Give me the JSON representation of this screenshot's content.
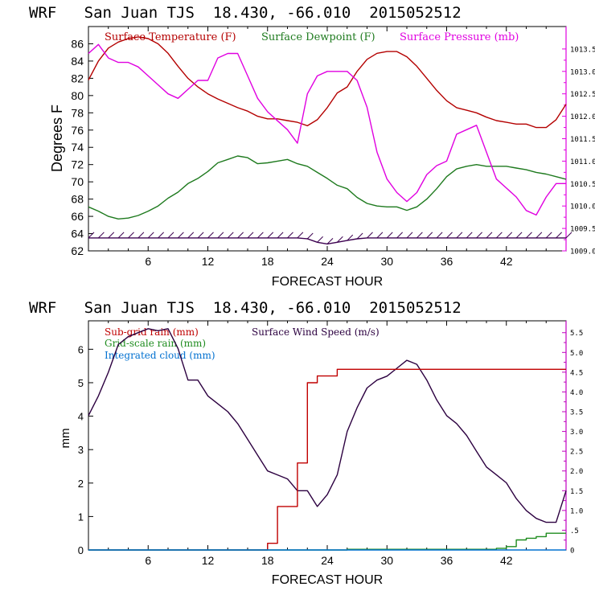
{
  "chart_data": [
    {
      "type": "line",
      "title": "WRF   San Juan TJS  18.430, -66.010  2015052512",
      "xlabel": "FORECAST HOUR",
      "ylabel": "Degrees F",
      "xlim": [
        0,
        48
      ],
      "ylim": [
        62,
        88
      ],
      "y2lim": [
        1009.0,
        1014.0
      ],
      "xticks": [
        "6",
        "12",
        "18",
        "24",
        "30",
        "36",
        "42"
      ],
      "yticks": [
        "62",
        "64",
        "66",
        "68",
        "70",
        "72",
        "74",
        "76",
        "78",
        "80",
        "82",
        "84",
        "86"
      ],
      "y2ticks": [
        "1009.0",
        "1009.5",
        "1010.0",
        "1010.5",
        "1011.0",
        "1011.5",
        "1012.0",
        "1012.5",
        "1013.0",
        "1013.5"
      ],
      "colors": {
        "temperature": "#b40000",
        "dewpoint": "#1e7a1e",
        "pressure": "#e000e0",
        "wind": "#3c0050"
      },
      "legend": [
        "Surface Temperature (F)",
        "Surface Dewpoint (F)",
        "Surface Pressure (mb)"
      ],
      "x": [
        0,
        1,
        2,
        3,
        4,
        5,
        6,
        7,
        8,
        9,
        10,
        11,
        12,
        13,
        14,
        15,
        16,
        17,
        18,
        19,
        20,
        21,
        22,
        23,
        24,
        25,
        26,
        27,
        28,
        29,
        30,
        31,
        32,
        33,
        34,
        35,
        36,
        37,
        38,
        39,
        40,
        41,
        42,
        43,
        44,
        45,
        46,
        47,
        48
      ],
      "series": [
        {
          "name": "Surface Temperature (F)",
          "axis": "left",
          "values": [
            81.8,
            84.0,
            85.5,
            86.2,
            86.6,
            86.8,
            86.6,
            86.0,
            84.9,
            83.4,
            82.0,
            81.0,
            80.2,
            79.6,
            79.1,
            78.6,
            78.2,
            77.6,
            77.3,
            77.3,
            77.1,
            76.9,
            76.5,
            77.2,
            78.6,
            80.3,
            81.0,
            82.8,
            84.2,
            84.9,
            85.1,
            85.1,
            84.5,
            83.4,
            82.0,
            80.6,
            79.4,
            78.6,
            78.3,
            78.0,
            77.5,
            77.1,
            76.9,
            76.7,
            76.7,
            76.3,
            76.3,
            77.2,
            79.0
          ]
        },
        {
          "name": "Surface Dewpoint (F)",
          "axis": "left",
          "values": [
            67.1,
            66.6,
            66.0,
            65.7,
            65.8,
            66.1,
            66.6,
            67.2,
            68.1,
            68.8,
            69.8,
            70.4,
            71.2,
            72.2,
            72.6,
            73.0,
            72.8,
            72.1,
            72.2,
            72.4,
            72.6,
            72.1,
            71.8,
            71.1,
            70.4,
            69.6,
            69.2,
            68.2,
            67.5,
            67.2,
            67.1,
            67.1,
            66.7,
            67.1,
            68.0,
            69.2,
            70.6,
            71.5,
            71.8,
            72.0,
            71.8,
            71.8,
            71.8,
            71.6,
            71.4,
            71.1,
            70.9,
            70.6,
            70.3
          ]
        },
        {
          "name": "Surface Pressure (mb)",
          "axis": "right",
          "values": [
            1013.4,
            1013.6,
            1013.3,
            1013.2,
            1013.2,
            1013.1,
            1012.9,
            1012.7,
            1012.5,
            1012.4,
            1012.6,
            1012.8,
            1012.8,
            1013.3,
            1013.4,
            1013.4,
            1012.9,
            1012.4,
            1012.1,
            1011.9,
            1011.7,
            1011.4,
            1012.5,
            1012.9,
            1013.0,
            1013.0,
            1013.0,
            1012.8,
            1012.2,
            1011.2,
            1010.6,
            1010.3,
            1010.1,
            1010.3,
            1010.7,
            1010.9,
            1011.0,
            1011.6,
            1011.7,
            1011.8,
            1011.2,
            1010.6,
            1010.4,
            1010.2,
            1009.9,
            1009.8,
            1010.2,
            1010.5,
            1010.5
          ]
        },
        {
          "name": "",
          "axis": "left",
          "style": "wind-barbs",
          "values": [
            63.5,
            63.5,
            63.5,
            63.5,
            63.5,
            63.5,
            63.5,
            63.5,
            63.5,
            63.5,
            63.5,
            63.5,
            63.5,
            63.5,
            63.5,
            63.5,
            63.5,
            63.5,
            63.5,
            63.5,
            63.5,
            63.5,
            63.4,
            63.0,
            62.8,
            63.0,
            63.2,
            63.4,
            63.5,
            63.5,
            63.5,
            63.5,
            63.5,
            63.5,
            63.5,
            63.5,
            63.5,
            63.5,
            63.5,
            63.5,
            63.5,
            63.5,
            63.5,
            63.5,
            63.5,
            63.5,
            63.5,
            63.5,
            63.5
          ]
        }
      ]
    },
    {
      "type": "line",
      "title": "WRF   San Juan TJS  18.430, -66.010  2015052512",
      "xlabel": "FORECAST HOUR",
      "ylabel": "mm",
      "xlim": [
        0,
        48
      ],
      "ylim": [
        0,
        6.85
      ],
      "y2lim": [
        0,
        5.8
      ],
      "xticks": [
        "6",
        "12",
        "18",
        "24",
        "30",
        "36",
        "42"
      ],
      "yticks": [
        "0",
        "1",
        "2",
        "3",
        "4",
        "5",
        "6"
      ],
      "y2ticks": [
        "0",
        ".5",
        "1.0",
        "1.5",
        "2.0",
        "2.5",
        "3.0",
        "3.5",
        "4.0",
        "4.5",
        "5.0",
        "5.5"
      ],
      "colors": {
        "subgrid": "#c00000",
        "gridscale": "#1e8c1e",
        "cloud": "#0070d0",
        "wind": "#2c0040"
      },
      "legend": [
        "Sub-grid rain (mm)",
        "Grid-scale rain (mm)",
        "Integrated cloud (mm)",
        "Surface Wind Speed (m/s)"
      ],
      "x": [
        0,
        1,
        2,
        3,
        4,
        5,
        6,
        7,
        8,
        9,
        10,
        11,
        12,
        13,
        14,
        15,
        16,
        17,
        18,
        19,
        20,
        21,
        22,
        23,
        24,
        25,
        26,
        27,
        28,
        29,
        30,
        31,
        32,
        33,
        34,
        35,
        36,
        37,
        38,
        39,
        40,
        41,
        42,
        43,
        44,
        45,
        46,
        47,
        48
      ],
      "series": [
        {
          "name": "Surface Wind Speed (m/s)",
          "axis": "right",
          "values": [
            3.4,
            3.9,
            4.5,
            5.2,
            5.4,
            5.5,
            5.6,
            5.55,
            5.6,
            5.1,
            4.3,
            4.3,
            3.9,
            3.7,
            3.5,
            3.2,
            2.8,
            2.4,
            2.0,
            1.9,
            1.8,
            1.5,
            1.5,
            1.1,
            1.4,
            1.9,
            3.0,
            3.6,
            4.1,
            4.3,
            4.4,
            4.6,
            4.8,
            4.7,
            4.3,
            3.8,
            3.4,
            3.2,
            2.9,
            2.5,
            2.1,
            1.9,
            1.7,
            1.3,
            1.0,
            0.8,
            0.7,
            0.7,
            1.5
          ]
        },
        {
          "name": "Sub-grid rain (mm)",
          "axis": "left",
          "values": [
            0,
            0,
            0,
            0,
            0,
            0,
            0,
            0,
            0,
            0,
            0,
            0,
            0,
            0,
            0,
            0,
            0,
            0,
            0.2,
            1.3,
            1.3,
            2.6,
            5.0,
            5.2,
            5.2,
            5.4,
            5.4,
            5.4,
            5.4,
            5.4,
            5.4,
            5.4,
            5.4,
            5.4,
            5.4,
            5.4,
            5.4,
            5.4,
            5.4,
            5.4,
            5.4,
            5.4,
            5.4,
            5.4,
            5.4,
            5.4,
            5.4,
            5.4,
            5.4
          ]
        },
        {
          "name": "Grid-scale rain (mm)",
          "axis": "left",
          "values": [
            0,
            0,
            0,
            0,
            0,
            0,
            0,
            0,
            0,
            0,
            0,
            0,
            0,
            0,
            0,
            0,
            0,
            0,
            0,
            0,
            0,
            0,
            0,
            0,
            0,
            0,
            0.02,
            0.02,
            0.02,
            0.02,
            0.02,
            0.02,
            0.02,
            0.02,
            0.02,
            0.02,
            0.02,
            0.02,
            0.02,
            0.02,
            0.02,
            0.05,
            0.1,
            0.3,
            0.35,
            0.4,
            0.5,
            0.5,
            0.5
          ]
        },
        {
          "name": "Integrated cloud (mm)",
          "axis": "left",
          "values": [
            0,
            0,
            0,
            0,
            0,
            0,
            0,
            0,
            0,
            0,
            0,
            0,
            0,
            0,
            0,
            0,
            0,
            0,
            0,
            0,
            0,
            0,
            0,
            0,
            0,
            0,
            0,
            0,
            0,
            0,
            0,
            0,
            0,
            0,
            0,
            0,
            0,
            0,
            0,
            0,
            0,
            0,
            0,
            0,
            0,
            0,
            0,
            0,
            0
          ]
        }
      ]
    }
  ]
}
